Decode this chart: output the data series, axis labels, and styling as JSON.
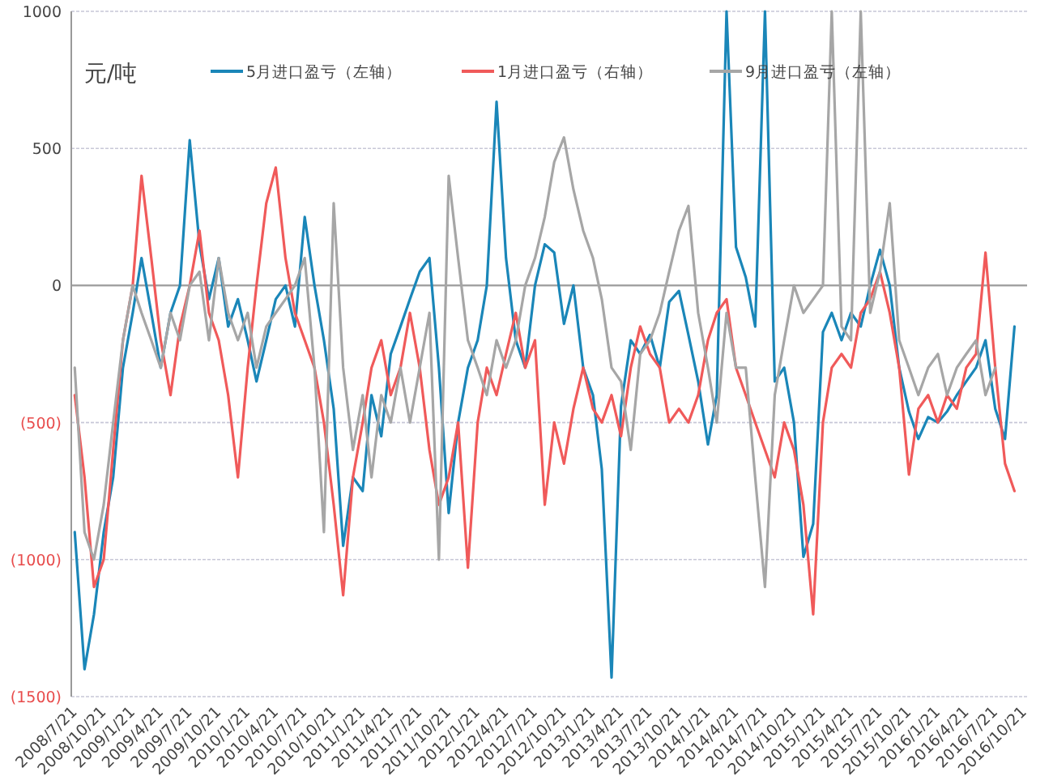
{
  "chart_data": {
    "type": "line",
    "ylabel": "元/吨",
    "legend": "top",
    "grid": "y",
    "xlim": [
      "2008-07-21",
      "2016-11-10"
    ],
    "xticks": [
      {
        "value": "2008-07-21",
        "label": "2008/7/21"
      },
      {
        "value": "2008-10-21",
        "label": "2008/10/21"
      },
      {
        "value": "2009-01-21",
        "label": "2009/1/21"
      },
      {
        "value": "2009-04-21",
        "label": "2009/4/21"
      },
      {
        "value": "2009-07-21",
        "label": "2009/7/21"
      },
      {
        "value": "2009-10-21",
        "label": "2009/10/21"
      },
      {
        "value": "2010-01-21",
        "label": "2010/1/21"
      },
      {
        "value": "2010-04-21",
        "label": "2010/4/21"
      },
      {
        "value": "2010-07-21",
        "label": "2010/7/21"
      },
      {
        "value": "2010-10-21",
        "label": "2010/10/21"
      },
      {
        "value": "2011-01-21",
        "label": "2011/1/21"
      },
      {
        "value": "2011-04-21",
        "label": "2011/4/21"
      },
      {
        "value": "2011-07-21",
        "label": "2011/7/21"
      },
      {
        "value": "2011-10-21",
        "label": "2011/10/21"
      },
      {
        "value": "2012-01-21",
        "label": "2012/1/21"
      },
      {
        "value": "2012-04-21",
        "label": "2012/4/21"
      },
      {
        "value": "2012-07-21",
        "label": "2012/7/21"
      },
      {
        "value": "2012-10-21",
        "label": "2012/10/21"
      },
      {
        "value": "2013-01-21",
        "label": "2013/1/21"
      },
      {
        "value": "2013-04-21",
        "label": "2013/4/21"
      },
      {
        "value": "2013-07-21",
        "label": "2013/7/21"
      },
      {
        "value": "2013-10-21",
        "label": "2013/10/21"
      },
      {
        "value": "2014-01-21",
        "label": "2014/1/21"
      },
      {
        "value": "2014-04-21",
        "label": "2014/4/21"
      },
      {
        "value": "2014-07-21",
        "label": "2014/7/21"
      },
      {
        "value": "2014-10-21",
        "label": "2014/10/21"
      },
      {
        "value": "2015-01-21",
        "label": "2015/1/21"
      },
      {
        "value": "2015-04-21",
        "label": "2015/4/21"
      },
      {
        "value": "2015-07-21",
        "label": "2015/7/21"
      },
      {
        "value": "2015-10-21",
        "label": "2015/10/21"
      },
      {
        "value": "2016-01-21",
        "label": "2016/1/21"
      },
      {
        "value": "2016-04-21",
        "label": "2016/4/21"
      },
      {
        "value": "2016-07-21",
        "label": "2016/7/21"
      },
      {
        "value": "2016-10-21",
        "label": "2016/10/21"
      }
    ],
    "ylim": [
      -1500,
      1000
    ],
    "yticks": [
      1000,
      500,
      0,
      {
        "value": -500,
        "label": "(500)"
      },
      {
        "value": -1000,
        "label": "(1000)"
      },
      {
        "value": -1500,
        "label": "(1500)"
      }
    ],
    "x": [
      "2008-08",
      "2008-09",
      "2008-10",
      "2008-11",
      "2008-12",
      "2009-01",
      "2009-02",
      "2009-03",
      "2009-04",
      "2009-05",
      "2009-06",
      "2009-07",
      "2009-08",
      "2009-09",
      "2009-10",
      "2009-11",
      "2009-12",
      "2010-01",
      "2010-02",
      "2010-03",
      "2010-04",
      "2010-05",
      "2010-06",
      "2010-07",
      "2010-08",
      "2010-09",
      "2010-10",
      "2010-11",
      "2010-12",
      "2011-01",
      "2011-02",
      "2011-03",
      "2011-04",
      "2011-05",
      "2011-06",
      "2011-07",
      "2011-08",
      "2011-09",
      "2011-10",
      "2011-11",
      "2011-12",
      "2012-01",
      "2012-02",
      "2012-03",
      "2012-04",
      "2012-05",
      "2012-06",
      "2012-07",
      "2012-08",
      "2012-09",
      "2012-10",
      "2012-11",
      "2012-12",
      "2013-01",
      "2013-02",
      "2013-03",
      "2013-04",
      "2013-05",
      "2013-06",
      "2013-07",
      "2013-08",
      "2013-09",
      "2013-10",
      "2013-11",
      "2013-12",
      "2014-01",
      "2014-02",
      "2014-03",
      "2014-04",
      "2014-05",
      "2014-06",
      "2014-07",
      "2014-08",
      "2014-09",
      "2014-10",
      "2014-11",
      "2014-12",
      "2015-01",
      "2015-02",
      "2015-03",
      "2015-04",
      "2015-05",
      "2015-06",
      "2015-07",
      "2015-08",
      "2015-09",
      "2015-10",
      "2015-11",
      "2015-12",
      "2016-01",
      "2016-02",
      "2016-03",
      "2016-04",
      "2016-05",
      "2016-06",
      "2016-07",
      "2016-08",
      "2016-09",
      "2016-10"
    ],
    "series": [
      {
        "name": "5月进口盈亏（左轴）",
        "color": "#1a86b8",
        "values": [
          -900,
          -1400,
          -1200,
          -900,
          -700,
          -300,
          -100,
          100,
          -100,
          -300,
          -100,
          0,
          530,
          150,
          -50,
          100,
          -150,
          -50,
          -200,
          -350,
          -200,
          -50,
          0,
          -150,
          250,
          0,
          -200,
          -450,
          -950,
          -700,
          -750,
          -400,
          -550,
          -250,
          -150,
          -50,
          50,
          100,
          -300,
          -830,
          -500,
          -300,
          -200,
          0,
          670,
          100,
          -200,
          -300,
          0,
          150,
          120,
          -140,
          0,
          -300,
          -400,
          -670,
          -1430,
          -440,
          -200,
          -250,
          -180,
          -300,
          -60,
          -20,
          -180,
          -350,
          -580,
          -400,
          1000,
          140,
          30,
          -150,
          1000,
          -350,
          -300,
          -500,
          -990,
          -870,
          -170,
          -100,
          -200,
          -100,
          -150,
          0,
          130,
          0,
          -300,
          -460,
          -560,
          -480,
          -500,
          -460,
          -400,
          -350,
          -300,
          -200,
          -450,
          -560,
          -150
        ]
      },
      {
        "name": "1月进口盈亏（右轴）",
        "color": "#f05a5a",
        "values": [
          -400,
          -700,
          -1100,
          -1000,
          -600,
          -200,
          0,
          400,
          100,
          -200,
          -400,
          -150,
          0,
          200,
          -100,
          -200,
          -400,
          -700,
          -300,
          0,
          300,
          430,
          100,
          -100,
          -200,
          -300,
          -500,
          -800,
          -1130,
          -700,
          -500,
          -300,
          -200,
          -400,
          -300,
          -100,
          -300,
          -600,
          -800,
          -700,
          -500,
          -1030,
          -500,
          -300,
          -400,
          -250,
          -100,
          -300,
          -200,
          -800,
          -500,
          -650,
          -450,
          -300,
          -450,
          -500,
          -400,
          -550,
          -300,
          -150,
          -250,
          -300,
          -500,
          -450,
          -500,
          -400,
          -200,
          -100,
          -50,
          -300,
          -400,
          -500,
          -600,
          -700,
          -500,
          -600,
          -800,
          -1200,
          -500,
          -300,
          -250,
          -300,
          -100,
          -50,
          50,
          -100,
          -300,
          -690,
          -450,
          -400,
          -500,
          -400,
          -450,
          -300,
          -250,
          120,
          -300,
          -650,
          -750
        ]
      },
      {
        "name": "9月进口盈亏（左轴）",
        "color": "#a6a6a6",
        "values": [
          -300,
          -900,
          -1000,
          -800,
          -500,
          -200,
          0,
          -100,
          -200,
          -300,
          -100,
          -200,
          0,
          50,
          -200,
          100,
          -100,
          -200,
          -100,
          -300,
          -150,
          -100,
          -50,
          0,
          100,
          -300,
          -900,
          300,
          -300,
          -600,
          -400,
          -700,
          -400,
          -500,
          -300,
          -500,
          -300,
          -100,
          -1000,
          400,
          100,
          -200,
          -300,
          -400,
          -200,
          -300,
          -200,
          0,
          100,
          250,
          450,
          540,
          350,
          200,
          100,
          -50,
          -300,
          -350,
          -600,
          -250,
          -200,
          -100,
          50,
          200,
          290,
          -100,
          -300,
          -500,
          -100,
          -300,
          -300,
          -700,
          -1100,
          -400,
          -200,
          0,
          -100,
          -50,
          0,
          1000,
          -150,
          -200,
          1000,
          -100,
          50,
          300,
          -200,
          -300,
          -400,
          -300,
          -250,
          -400,
          -300,
          -250,
          -200,
          -400,
          -300,
          null,
          null
        ]
      }
    ]
  }
}
